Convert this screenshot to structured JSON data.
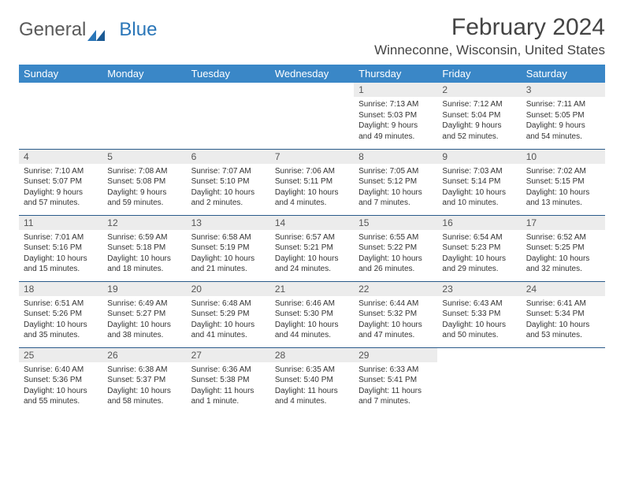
{
  "logo": {
    "text1": "General",
    "text2": "Blue"
  },
  "title": "February 2024",
  "location": "Winneconne, Wisconsin, United States",
  "colors": {
    "header_bg": "#3a87c7",
    "header_text": "#ffffff",
    "daynum_bg": "#ececec",
    "border": "#2a5a8a",
    "body_text": "#333333",
    "title_text": "#444444",
    "logo_gray": "#5a5a5a",
    "logo_blue": "#2a76b8"
  },
  "weekdays": [
    "Sunday",
    "Monday",
    "Tuesday",
    "Wednesday",
    "Thursday",
    "Friday",
    "Saturday"
  ],
  "weeks": [
    [
      null,
      null,
      null,
      null,
      {
        "n": "1",
        "sr": "7:13 AM",
        "ss": "5:03 PM",
        "dl": "9 hours and 49 minutes."
      },
      {
        "n": "2",
        "sr": "7:12 AM",
        "ss": "5:04 PM",
        "dl": "9 hours and 52 minutes."
      },
      {
        "n": "3",
        "sr": "7:11 AM",
        "ss": "5:05 PM",
        "dl": "9 hours and 54 minutes."
      }
    ],
    [
      {
        "n": "4",
        "sr": "7:10 AM",
        "ss": "5:07 PM",
        "dl": "9 hours and 57 minutes."
      },
      {
        "n": "5",
        "sr": "7:08 AM",
        "ss": "5:08 PM",
        "dl": "9 hours and 59 minutes."
      },
      {
        "n": "6",
        "sr": "7:07 AM",
        "ss": "5:10 PM",
        "dl": "10 hours and 2 minutes."
      },
      {
        "n": "7",
        "sr": "7:06 AM",
        "ss": "5:11 PM",
        "dl": "10 hours and 4 minutes."
      },
      {
        "n": "8",
        "sr": "7:05 AM",
        "ss": "5:12 PM",
        "dl": "10 hours and 7 minutes."
      },
      {
        "n": "9",
        "sr": "7:03 AM",
        "ss": "5:14 PM",
        "dl": "10 hours and 10 minutes."
      },
      {
        "n": "10",
        "sr": "7:02 AM",
        "ss": "5:15 PM",
        "dl": "10 hours and 13 minutes."
      }
    ],
    [
      {
        "n": "11",
        "sr": "7:01 AM",
        "ss": "5:16 PM",
        "dl": "10 hours and 15 minutes."
      },
      {
        "n": "12",
        "sr": "6:59 AM",
        "ss": "5:18 PM",
        "dl": "10 hours and 18 minutes."
      },
      {
        "n": "13",
        "sr": "6:58 AM",
        "ss": "5:19 PM",
        "dl": "10 hours and 21 minutes."
      },
      {
        "n": "14",
        "sr": "6:57 AM",
        "ss": "5:21 PM",
        "dl": "10 hours and 24 minutes."
      },
      {
        "n": "15",
        "sr": "6:55 AM",
        "ss": "5:22 PM",
        "dl": "10 hours and 26 minutes."
      },
      {
        "n": "16",
        "sr": "6:54 AM",
        "ss": "5:23 PM",
        "dl": "10 hours and 29 minutes."
      },
      {
        "n": "17",
        "sr": "6:52 AM",
        "ss": "5:25 PM",
        "dl": "10 hours and 32 minutes."
      }
    ],
    [
      {
        "n": "18",
        "sr": "6:51 AM",
        "ss": "5:26 PM",
        "dl": "10 hours and 35 minutes."
      },
      {
        "n": "19",
        "sr": "6:49 AM",
        "ss": "5:27 PM",
        "dl": "10 hours and 38 minutes."
      },
      {
        "n": "20",
        "sr": "6:48 AM",
        "ss": "5:29 PM",
        "dl": "10 hours and 41 minutes."
      },
      {
        "n": "21",
        "sr": "6:46 AM",
        "ss": "5:30 PM",
        "dl": "10 hours and 44 minutes."
      },
      {
        "n": "22",
        "sr": "6:44 AM",
        "ss": "5:32 PM",
        "dl": "10 hours and 47 minutes."
      },
      {
        "n": "23",
        "sr": "6:43 AM",
        "ss": "5:33 PM",
        "dl": "10 hours and 50 minutes."
      },
      {
        "n": "24",
        "sr": "6:41 AM",
        "ss": "5:34 PM",
        "dl": "10 hours and 53 minutes."
      }
    ],
    [
      {
        "n": "25",
        "sr": "6:40 AM",
        "ss": "5:36 PM",
        "dl": "10 hours and 55 minutes."
      },
      {
        "n": "26",
        "sr": "6:38 AM",
        "ss": "5:37 PM",
        "dl": "10 hours and 58 minutes."
      },
      {
        "n": "27",
        "sr": "6:36 AM",
        "ss": "5:38 PM",
        "dl": "11 hours and 1 minute."
      },
      {
        "n": "28",
        "sr": "6:35 AM",
        "ss": "5:40 PM",
        "dl": "11 hours and 4 minutes."
      },
      {
        "n": "29",
        "sr": "6:33 AM",
        "ss": "5:41 PM",
        "dl": "11 hours and 7 minutes."
      },
      null,
      null
    ]
  ],
  "labels": {
    "sunrise": "Sunrise:",
    "sunset": "Sunset:",
    "daylight": "Daylight:"
  }
}
